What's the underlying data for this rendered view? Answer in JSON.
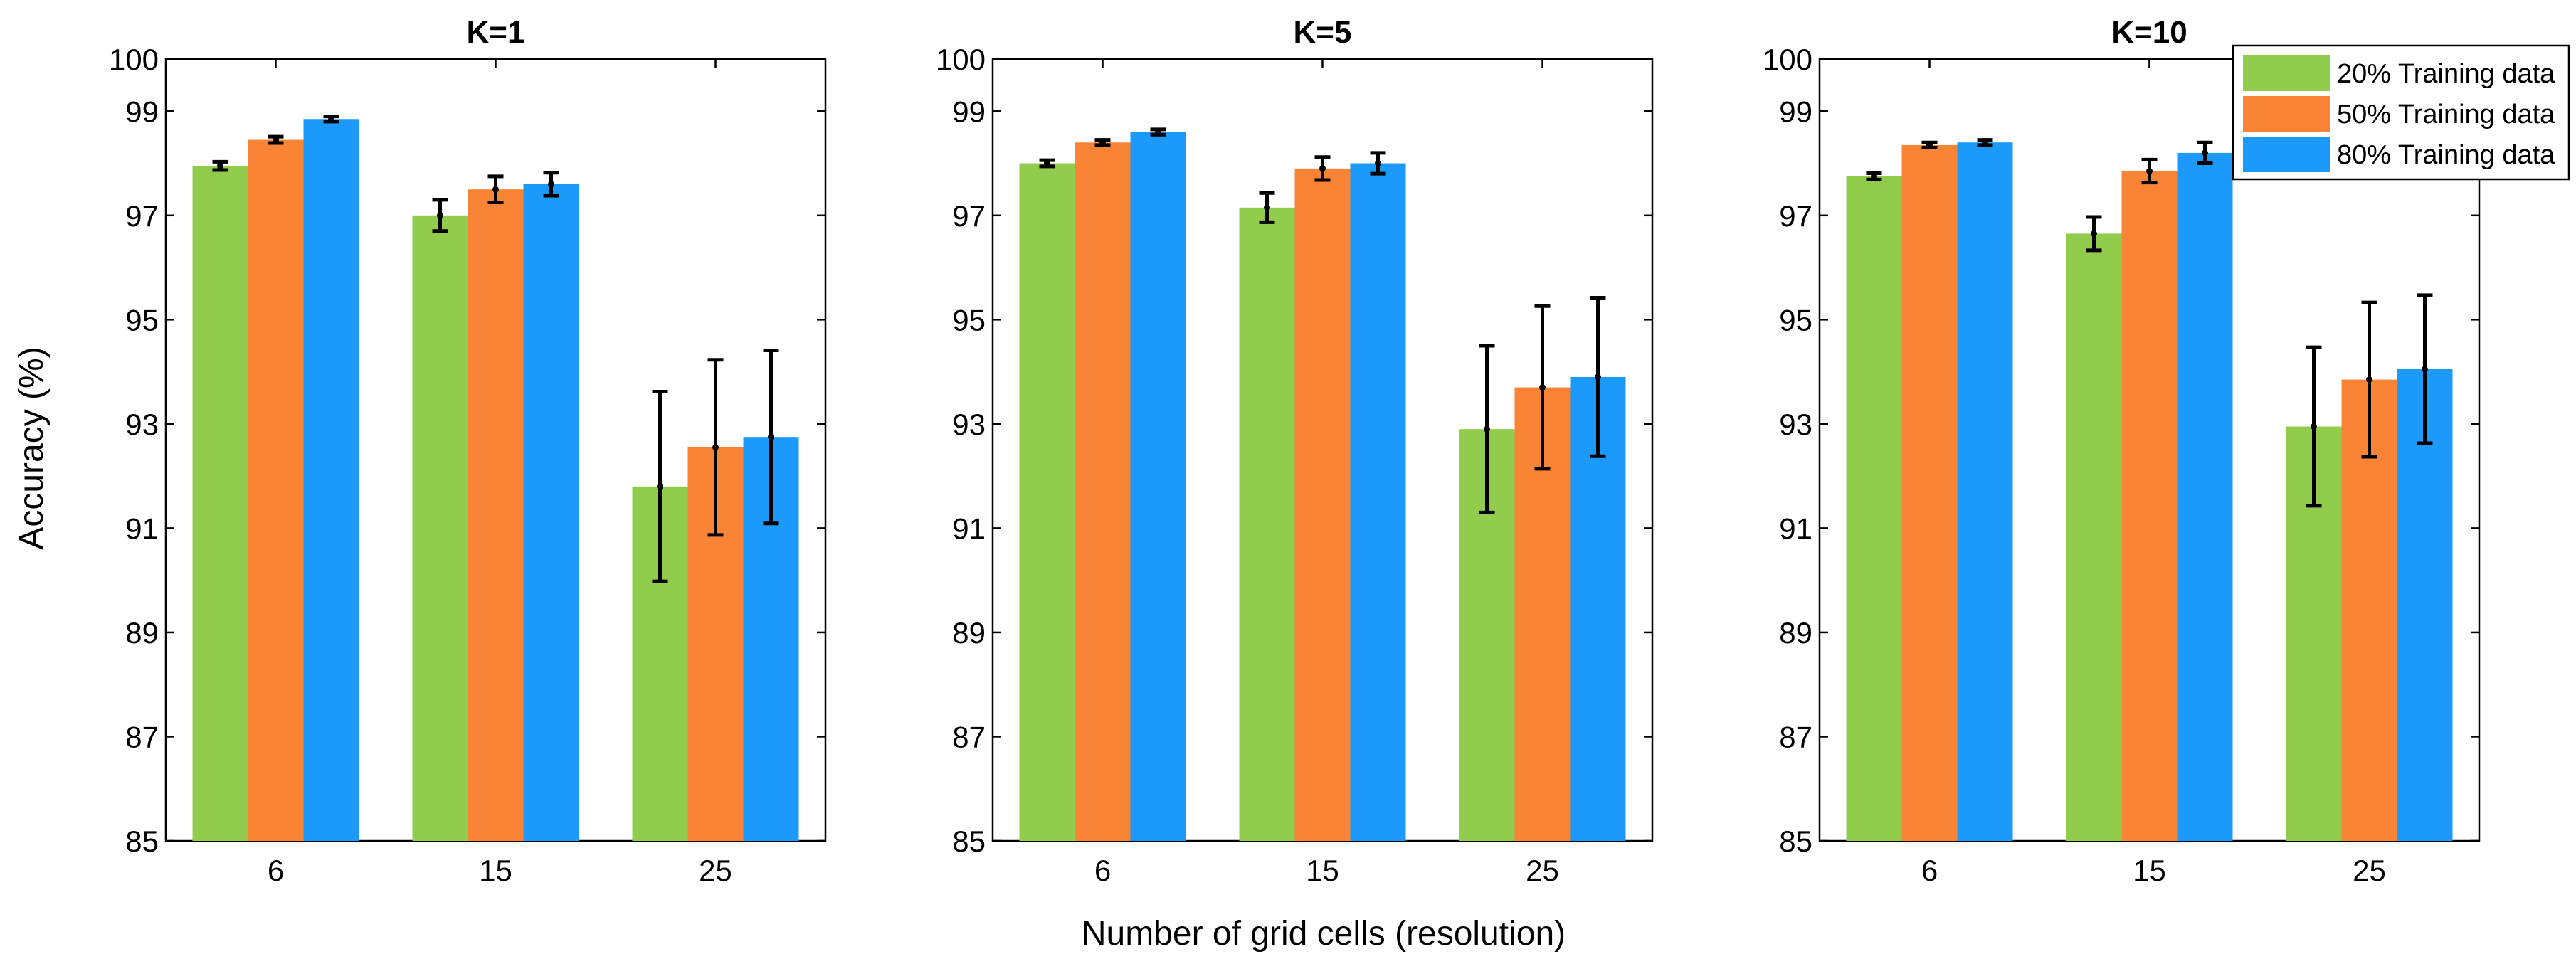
{
  "colors": {
    "green": "#92CC4D",
    "orange": "#FA8436",
    "blue": "#1C9AFB",
    "axis": "#000000"
  },
  "shared": {
    "ylabel": "Accuracy (%)",
    "xlabel": "Number of grid cells (resolution)"
  },
  "legend": [
    {
      "label": "20% Training data",
      "color": "#92CC4D"
    },
    {
      "label": "50% Training data",
      "color": "#FA8436"
    },
    {
      "label": "80% Training data",
      "color": "#1C9AFB"
    }
  ],
  "chart_data": [
    {
      "type": "bar",
      "title": "K=1",
      "categories": [
        "6",
        "15",
        "25"
      ],
      "ylim": [
        85,
        100
      ],
      "yticks": [
        85,
        87,
        89,
        91,
        93,
        95,
        97,
        99,
        100
      ],
      "series": [
        {
          "name": "20% Training data",
          "values": [
            97.95,
            97.0,
            91.8
          ],
          "errors": [
            0.08,
            0.3,
            1.82
          ]
        },
        {
          "name": "50% Training data",
          "values": [
            98.45,
            97.5,
            92.55
          ],
          "errors": [
            0.06,
            0.25,
            1.68
          ]
        },
        {
          "name": "80% Training data",
          "values": [
            98.85,
            97.6,
            92.75
          ],
          "errors": [
            0.05,
            0.22,
            1.66
          ]
        }
      ]
    },
    {
      "type": "bar",
      "title": "K=5",
      "categories": [
        "6",
        "15",
        "25"
      ],
      "ylim": [
        85,
        100
      ],
      "yticks": [
        85,
        87,
        89,
        91,
        93,
        95,
        97,
        99,
        100
      ],
      "series": [
        {
          "name": "20% Training data",
          "values": [
            98.0,
            97.15,
            92.9
          ],
          "errors": [
            0.06,
            0.28,
            1.6
          ]
        },
        {
          "name": "50% Training data",
          "values": [
            98.4,
            97.9,
            93.7
          ],
          "errors": [
            0.05,
            0.22,
            1.56
          ]
        },
        {
          "name": "80% Training data",
          "values": [
            98.6,
            98.0,
            93.9
          ],
          "errors": [
            0.05,
            0.2,
            1.52
          ]
        }
      ]
    },
    {
      "type": "bar",
      "title": "K=10",
      "categories": [
        "6",
        "15",
        "25"
      ],
      "ylim": [
        85,
        100
      ],
      "yticks": [
        85,
        87,
        89,
        91,
        93,
        95,
        97,
        99,
        100
      ],
      "series": [
        {
          "name": "20% Training data",
          "values": [
            97.75,
            96.65,
            92.95
          ],
          "errors": [
            0.06,
            0.32,
            1.52
          ]
        },
        {
          "name": "50% Training data",
          "values": [
            98.35,
            97.85,
            93.85
          ],
          "errors": [
            0.05,
            0.22,
            1.48
          ]
        },
        {
          "name": "80% Training data",
          "values": [
            98.4,
            98.2,
            94.05
          ],
          "errors": [
            0.05,
            0.2,
            1.42
          ]
        }
      ]
    }
  ]
}
